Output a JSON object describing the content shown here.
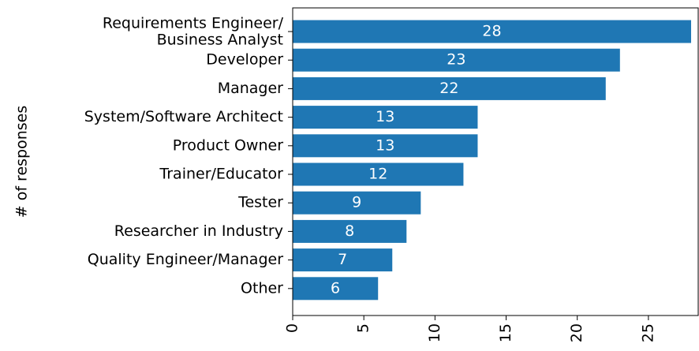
{
  "chart_data": {
    "type": "barh",
    "ylabel": "# of responses",
    "categories": [
      "Requirements Engineer/\nBusiness Analyst",
      "Developer",
      "Manager",
      "System/Software Architect",
      "Product Owner",
      "Trainer/Educator",
      "Tester",
      "Researcher in Industry",
      "Quality Engineer/Manager",
      "Other"
    ],
    "values": [
      28,
      23,
      22,
      13,
      13,
      12,
      9,
      8,
      7,
      6
    ],
    "color": "#1f77b4",
    "xlim": [
      0,
      28.5
    ],
    "xticks": [
      0,
      5,
      10,
      15,
      20,
      25
    ]
  }
}
